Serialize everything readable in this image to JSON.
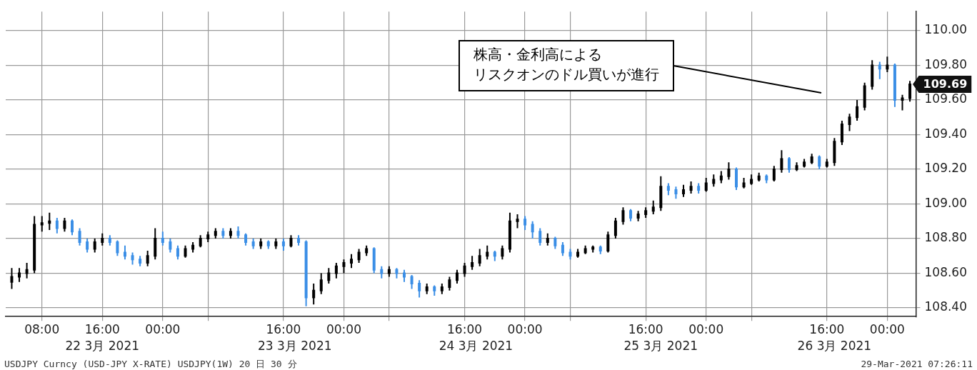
{
  "chart_data": {
    "type": "candlestick",
    "xlim": [
      "2021-03-22T03:12",
      "2021-03-27T03:48"
    ],
    "xticks": [
      {
        "value": "2021-03-22T08:00",
        "label": "08:00"
      },
      {
        "value": "2021-03-22T16:00",
        "label": "16:00"
      },
      {
        "value": "2021-03-23T00:00",
        "label": "00:00"
      },
      {
        "value": "2021-03-23T06:00",
        "label": null
      },
      {
        "value": "2021-03-23T16:00",
        "label": "16:00"
      },
      {
        "value": "2021-03-24T00:00",
        "label": "00:00"
      },
      {
        "value": "2021-03-24T06:00",
        "label": null
      },
      {
        "value": "2021-03-24T16:00",
        "label": "16:00"
      },
      {
        "value": "2021-03-25T00:00",
        "label": "00:00"
      },
      {
        "value": "2021-03-25T06:00",
        "label": null
      },
      {
        "value": "2021-03-25T16:00",
        "label": "16:00"
      },
      {
        "value": "2021-03-26T00:00",
        "label": "00:00"
      },
      {
        "value": "2021-03-26T06:00",
        "label": null
      },
      {
        "value": "2021-03-26T16:00",
        "label": "16:00"
      },
      {
        "value": "2021-03-27T00:00",
        "label": "00:00"
      }
    ],
    "x2lim": [
      "2021-03-22T03:12",
      "2021-03-27T03:48"
    ],
    "x2ticks": [
      {
        "value": "2021-03-22T16:00",
        "label": "22 3月 2021"
      },
      {
        "value": "2021-03-23T17:30",
        "label": "23 3月 2021"
      },
      {
        "value": "2021-03-24T17:30",
        "label": "24 3月 2021"
      },
      {
        "value": "2021-03-25T18:00",
        "label": "25 3月 2021"
      },
      {
        "value": "2021-03-26T17:00",
        "label": "26 3月 2021"
      }
    ],
    "ylim": [
      108.35,
      110.11
    ],
    "yticks": [
      {
        "value": 108.4,
        "label": "108.40"
      },
      {
        "value": 108.6,
        "label": "108.60"
      },
      {
        "value": 108.8,
        "label": "108.80"
      },
      {
        "value": 109,
        "label": "109.00"
      },
      {
        "value": 109.2,
        "label": "109.20"
      },
      {
        "value": 109.4,
        "label": "109.40"
      },
      {
        "value": 109.6,
        "label": "109.60"
      },
      {
        "value": 109.8,
        "label": "109.80"
      },
      {
        "value": 110,
        "label": "110.00"
      }
    ],
    "grid": true,
    "series": [
      {
        "color": "#000000",
        "x": [
          "2021-03-22T04:00",
          "2021-03-22T05:00",
          "2021-03-22T06:00",
          "2021-03-22T07:00",
          "2021-03-22T08:00",
          "2021-03-22T09:00",
          "2021-03-22T11:00",
          "2021-03-22T15:00",
          "2021-03-22T16:00",
          "2021-03-22T22:00",
          "2021-03-22T23:00",
          "2021-03-23T03:00",
          "2021-03-23T04:00",
          "2021-03-23T05:00",
          "2021-03-23T06:00",
          "2021-03-23T07:00",
          "2021-03-23T09:00",
          "2021-03-23T13:00",
          "2021-03-23T15:00",
          "2021-03-23T17:00",
          "2021-03-23T20:00",
          "2021-03-23T21:00",
          "2021-03-23T22:00",
          "2021-03-23T23:00",
          "2021-03-24T00:00",
          "2021-03-24T01:00",
          "2021-03-24T02:00",
          "2021-03-24T03:00",
          "2021-03-24T06:00",
          "2021-03-24T11:00",
          "2021-03-24T13:00",
          "2021-03-24T14:00",
          "2021-03-24T15:00",
          "2021-03-24T16:00",
          "2021-03-24T17:00",
          "2021-03-24T18:00",
          "2021-03-24T19:00",
          "2021-03-24T21:00",
          "2021-03-24T22:00",
          "2021-03-24T23:00",
          "2021-03-25T03:00",
          "2021-03-25T07:00",
          "2021-03-25T08:00",
          "2021-03-25T09:00",
          "2021-03-25T11:00",
          "2021-03-25T12:00",
          "2021-03-25T13:00",
          "2021-03-25T15:00",
          "2021-03-25T16:00",
          "2021-03-25T17:00",
          "2021-03-25T18:00",
          "2021-03-25T21:00",
          "2021-03-25T22:00",
          "2021-03-26T00:00",
          "2021-03-26T01:00",
          "2021-03-26T02:00",
          "2021-03-26T03:00",
          "2021-03-26T05:00",
          "2021-03-26T06:00",
          "2021-03-26T07:00",
          "2021-03-26T09:00",
          "2021-03-26T10:00",
          "2021-03-26T12:00",
          "2021-03-26T13:00",
          "2021-03-26T14:00",
          "2021-03-26T16:00",
          "2021-03-26T17:00",
          "2021-03-26T18:00",
          "2021-03-26T19:00",
          "2021-03-26T20:00",
          "2021-03-26T21:00",
          "2021-03-26T22:00",
          "2021-03-27T00:00",
          "2021-03-27T02:00",
          "2021-03-27T03:00"
        ],
        "ohlc": [
          [
            108.55,
            108.63,
            108.51,
            108.58
          ],
          [
            108.58,
            108.63,
            108.55,
            108.6
          ],
          [
            108.6,
            108.66,
            108.57,
            108.62
          ],
          [
            108.62,
            108.93,
            108.6,
            108.88
          ],
          [
            108.88,
            108.93,
            108.84,
            108.89
          ],
          [
            108.89,
            108.95,
            108.85,
            108.9
          ],
          [
            108.86,
            108.92,
            108.84,
            108.9
          ],
          [
            108.74,
            108.8,
            108.72,
            108.78
          ],
          [
            108.78,
            108.83,
            108.76,
            108.8
          ],
          [
            108.66,
            108.73,
            108.64,
            108.7
          ],
          [
            108.7,
            108.86,
            108.68,
            108.8
          ],
          [
            108.7,
            108.76,
            108.69,
            108.74
          ],
          [
            108.74,
            108.78,
            108.72,
            108.76
          ],
          [
            108.76,
            108.82,
            108.75,
            108.8
          ],
          [
            108.8,
            108.84,
            108.78,
            108.82
          ],
          [
            108.82,
            108.86,
            108.8,
            108.84
          ],
          [
            108.82,
            108.86,
            108.8,
            108.84
          ],
          [
            108.76,
            108.8,
            108.74,
            108.78
          ],
          [
            108.76,
            108.8,
            108.74,
            108.78
          ],
          [
            108.76,
            108.82,
            108.75,
            108.8
          ],
          [
            108.46,
            108.54,
            108.42,
            108.5
          ],
          [
            108.5,
            108.6,
            108.48,
            108.56
          ],
          [
            108.56,
            108.63,
            108.54,
            108.6
          ],
          [
            108.6,
            108.66,
            108.57,
            108.64
          ],
          [
            108.64,
            108.68,
            108.6,
            108.66
          ],
          [
            108.66,
            108.71,
            108.63,
            108.68
          ],
          [
            108.68,
            108.74,
            108.66,
            108.72
          ],
          [
            108.72,
            108.76,
            108.7,
            108.74
          ],
          [
            108.6,
            108.64,
            108.58,
            108.62
          ],
          [
            108.5,
            108.54,
            108.48,
            108.52
          ],
          [
            108.5,
            108.54,
            108.48,
            108.52
          ],
          [
            108.52,
            108.58,
            108.5,
            108.56
          ],
          [
            108.56,
            108.62,
            108.54,
            108.6
          ],
          [
            108.6,
            108.66,
            108.58,
            108.64
          ],
          [
            108.64,
            108.7,
            108.62,
            108.66
          ],
          [
            108.66,
            108.74,
            108.64,
            108.7
          ],
          [
            108.7,
            108.76,
            108.68,
            108.72
          ],
          [
            108.7,
            108.76,
            108.68,
            108.74
          ],
          [
            108.74,
            108.95,
            108.72,
            108.9
          ],
          [
            108.9,
            108.94,
            108.86,
            108.91
          ],
          [
            108.78,
            108.83,
            108.76,
            108.8
          ],
          [
            108.7,
            108.74,
            108.69,
            108.72
          ],
          [
            108.72,
            108.76,
            108.71,
            108.74
          ],
          [
            108.74,
            108.76,
            108.72,
            108.75
          ],
          [
            108.73,
            108.84,
            108.72,
            108.82
          ],
          [
            108.82,
            108.92,
            108.8,
            108.9
          ],
          [
            108.9,
            108.98,
            108.88,
            108.96
          ],
          [
            108.92,
            108.96,
            108.9,
            108.94
          ],
          [
            108.94,
            108.98,
            108.92,
            108.96
          ],
          [
            108.96,
            109.02,
            108.94,
            108.98
          ],
          [
            108.98,
            109.16,
            108.96,
            109.1
          ],
          [
            109.06,
            109.11,
            109.04,
            109.08
          ],
          [
            109.08,
            109.13,
            109.06,
            109.1
          ],
          [
            109.08,
            109.15,
            109.07,
            109.12
          ],
          [
            109.12,
            109.17,
            109.1,
            109.14
          ],
          [
            109.14,
            109.19,
            109.12,
            109.16
          ],
          [
            109.16,
            109.24,
            109.14,
            109.2
          ],
          [
            109.1,
            109.15,
            109.09,
            109.12
          ],
          [
            109.12,
            109.17,
            109.11,
            109.14
          ],
          [
            109.14,
            109.18,
            109.13,
            109.16
          ],
          [
            109.14,
            109.22,
            109.13,
            109.2
          ],
          [
            109.2,
            109.31,
            109.18,
            109.26
          ],
          [
            109.2,
            109.24,
            109.19,
            109.22
          ],
          [
            109.22,
            109.26,
            109.21,
            109.24
          ],
          [
            109.24,
            109.29,
            109.23,
            109.27
          ],
          [
            109.22,
            109.26,
            109.21,
            109.24
          ],
          [
            109.24,
            109.38,
            109.22,
            109.36
          ],
          [
            109.36,
            109.48,
            109.34,
            109.46
          ],
          [
            109.46,
            109.52,
            109.42,
            109.5
          ],
          [
            109.5,
            109.6,
            109.48,
            109.56
          ],
          [
            109.56,
            109.7,
            109.54,
            109.68
          ],
          [
            109.68,
            109.83,
            109.66,
            109.8
          ],
          [
            109.78,
            109.85,
            109.76,
            109.8
          ],
          [
            109.6,
            109.63,
            109.54,
            109.61
          ],
          [
            109.61,
            109.71,
            109.59,
            109.69
          ]
        ]
      },
      {
        "color": "#3a8ee6",
        "x": [
          "2021-03-22T10:00",
          "2021-03-22T12:00",
          "2021-03-22T13:00",
          "2021-03-22T14:00",
          "2021-03-22T17:00",
          "2021-03-22T18:00",
          "2021-03-22T19:00",
          "2021-03-22T20:00",
          "2021-03-22T21:00",
          "2021-03-23T00:00",
          "2021-03-23T01:00",
          "2021-03-23T02:00",
          "2021-03-23T08:00",
          "2021-03-23T10:00",
          "2021-03-23T11:00",
          "2021-03-23T12:00",
          "2021-03-23T14:00",
          "2021-03-23T16:00",
          "2021-03-23T18:00",
          "2021-03-23T19:00",
          "2021-03-24T04:00",
          "2021-03-24T05:00",
          "2021-03-24T07:00",
          "2021-03-24T08:00",
          "2021-03-24T09:00",
          "2021-03-24T10:00",
          "2021-03-24T12:00",
          "2021-03-24T20:00",
          "2021-03-25T00:00",
          "2021-03-25T01:00",
          "2021-03-25T02:00",
          "2021-03-25T04:00",
          "2021-03-25T05:00",
          "2021-03-25T06:00",
          "2021-03-25T10:00",
          "2021-03-25T14:00",
          "2021-03-25T19:00",
          "2021-03-25T20:00",
          "2021-03-25T23:00",
          "2021-03-26T04:00",
          "2021-03-26T08:00",
          "2021-03-26T11:00",
          "2021-03-26T15:00",
          "2021-03-26T23:00",
          "2021-03-27T01:00"
        ],
        "ohlc": [
          [
            108.9,
            108.92,
            108.83,
            108.86
          ],
          [
            108.9,
            108.91,
            108.82,
            108.84
          ],
          [
            108.84,
            108.86,
            108.76,
            108.78
          ],
          [
            108.78,
            108.8,
            108.72,
            108.74
          ],
          [
            108.8,
            108.82,
            108.76,
            108.78
          ],
          [
            108.78,
            108.79,
            108.7,
            108.72
          ],
          [
            108.72,
            108.76,
            108.68,
            108.7
          ],
          [
            108.7,
            108.72,
            108.65,
            108.68
          ],
          [
            108.68,
            108.7,
            108.64,
            108.66
          ],
          [
            108.8,
            108.84,
            108.76,
            108.78
          ],
          [
            108.78,
            108.8,
            108.72,
            108.74
          ],
          [
            108.74,
            108.76,
            108.68,
            108.7
          ],
          [
            108.84,
            108.86,
            108.8,
            108.82
          ],
          [
            108.84,
            108.87,
            108.8,
            108.82
          ],
          [
            108.82,
            108.83,
            108.76,
            108.78
          ],
          [
            108.78,
            108.8,
            108.74,
            108.76
          ],
          [
            108.78,
            108.79,
            108.74,
            108.76
          ],
          [
            108.78,
            108.8,
            108.73,
            108.76
          ],
          [
            108.8,
            108.82,
            108.76,
            108.78
          ],
          [
            108.78,
            108.79,
            108.41,
            108.46
          ],
          [
            108.74,
            108.75,
            108.6,
            108.62
          ],
          [
            108.62,
            108.64,
            108.57,
            108.6
          ],
          [
            108.62,
            108.63,
            108.57,
            108.6
          ],
          [
            108.6,
            108.62,
            108.55,
            108.58
          ],
          [
            108.58,
            108.59,
            108.51,
            108.54
          ],
          [
            108.54,
            108.56,
            108.46,
            108.5
          ],
          [
            108.52,
            108.53,
            108.47,
            108.5
          ],
          [
            108.72,
            108.73,
            108.67,
            108.7
          ],
          [
            108.91,
            108.93,
            108.85,
            108.88
          ],
          [
            108.88,
            108.9,
            108.8,
            108.84
          ],
          [
            108.84,
            108.86,
            108.76,
            108.78
          ],
          [
            108.8,
            108.81,
            108.74,
            108.76
          ],
          [
            108.76,
            108.78,
            108.7,
            108.72
          ],
          [
            108.72,
            108.74,
            108.68,
            108.7
          ],
          [
            108.75,
            108.76,
            108.71,
            108.73
          ],
          [
            108.96,
            108.97,
            108.9,
            108.92
          ],
          [
            109.1,
            109.12,
            109.05,
            109.08
          ],
          [
            109.08,
            109.1,
            109.03,
            109.06
          ],
          [
            109.1,
            109.12,
            109.06,
            109.08
          ],
          [
            109.2,
            109.21,
            109.08,
            109.1
          ],
          [
            109.16,
            109.17,
            109.12,
            109.14
          ],
          [
            109.26,
            109.27,
            109.18,
            109.2
          ],
          [
            109.27,
            109.28,
            109.2,
            109.22
          ],
          [
            109.8,
            109.82,
            109.72,
            109.78
          ],
          [
            109.8,
            109.81,
            109.56,
            109.6
          ]
        ]
      }
    ],
    "annotations": [
      "株高・金利高による",
      "リスクオンのドル買いが進行",
      {
        "text": "109.69",
        "x": "2021-03-27T03:00",
        "y": 109.69
      },
      "USDJPY Curncy (USD-JPY X-RATE) USDJPY(1W) 20 日 30 分",
      "29-Mar-2021 07:26:11"
    ]
  }
}
